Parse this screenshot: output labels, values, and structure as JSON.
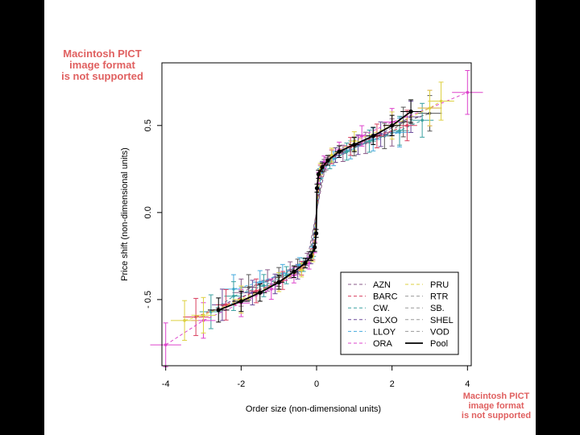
{
  "notices": {
    "top": [
      "Macintosh PICT",
      "image format",
      "is not supported"
    ],
    "bottom": [
      "Macintosh PICT",
      "image format",
      "is not supported"
    ]
  },
  "chart_data": {
    "type": "scatter",
    "title": "",
    "xlabel": "Order size (non-dimensional units)",
    "ylabel": "Price shift (non-dimensional units)",
    "xlim": [
      -4.1,
      4.1
    ],
    "ylim": [
      -0.88,
      0.86
    ],
    "x_ticks": [
      -4,
      -2,
      0,
      2,
      4
    ],
    "x_tick_labels": [
      "-4",
      "-2",
      "0",
      "2",
      "4"
    ],
    "y_ticks": [
      -0.5,
      0.0,
      0.5
    ],
    "y_tick_labels": [
      "- 0.5",
      "0.0",
      "0.5"
    ],
    "grid": false,
    "legend_position": "bottom-right",
    "legend_left": [
      {
        "name": "AZN",
        "color": "#8a5a88"
      },
      {
        "name": "BARC",
        "color": "#d94060"
      },
      {
        "name": "CW.",
        "color": "#3aa0a0"
      },
      {
        "name": "GLXO",
        "color": "#6a4a9a"
      },
      {
        "name": "LLOY",
        "color": "#44aadd"
      },
      {
        "name": "ORA",
        "color": "#dd44cc"
      }
    ],
    "legend_right": [
      {
        "name": "PRU",
        "color": "#ddd040"
      },
      {
        "name": "RTR",
        "color": "#999999"
      },
      {
        "name": "SB.",
        "color": "#999999"
      },
      {
        "name": "SHEL",
        "color": "#999999"
      },
      {
        "name": "VOD",
        "color": "#999999"
      },
      {
        "name": "Pool",
        "color": "#000000"
      }
    ],
    "series": [
      {
        "name": "Pool",
        "color": "#000000",
        "x": [
          -2.6,
          -2.0,
          -1.5,
          -1.0,
          -0.6,
          -0.3,
          -0.15,
          -0.05,
          -0.01,
          0.01,
          0.05,
          0.15,
          0.3,
          0.6,
          1.0,
          1.5,
          2.0,
          2.5
        ],
        "y": [
          -0.56,
          -0.51,
          -0.46,
          -0.4,
          -0.34,
          -0.29,
          -0.25,
          -0.2,
          -0.12,
          0.14,
          0.22,
          0.26,
          0.3,
          0.35,
          0.39,
          0.44,
          0.5,
          0.58
        ]
      },
      {
        "name": "PRU",
        "color": "#ddd040",
        "x": [
          -3.5,
          -3.0,
          -2.0,
          -1.0,
          -0.4,
          -0.1,
          0.1,
          0.4,
          1.0,
          2.0,
          3.0,
          3.3
        ],
        "y": [
          -0.62,
          -0.59,
          -0.5,
          -0.4,
          -0.33,
          -0.25,
          0.25,
          0.33,
          0.41,
          0.5,
          0.6,
          0.64
        ]
      },
      {
        "name": "ORA",
        "color": "#dd44cc",
        "x": [
          -4.0,
          -3.0,
          -2.0,
          -1.2,
          -0.6,
          -0.2,
          -0.05,
          0.05,
          0.2,
          0.6,
          1.2,
          2.0,
          3.0,
          4.0
        ],
        "y": [
          -0.76,
          -0.62,
          -0.52,
          -0.44,
          -0.36,
          -0.29,
          -0.2,
          0.2,
          0.29,
          0.36,
          0.44,
          0.52,
          0.6,
          0.69
        ]
      },
      {
        "name": "BARC",
        "color": "#d94060",
        "x": [
          -3.2,
          -2.4,
          -1.6,
          -0.9,
          -0.4,
          -0.1,
          0.1,
          0.4,
          0.9,
          1.6,
          2.4
        ],
        "y": [
          -0.6,
          -0.53,
          -0.45,
          -0.39,
          -0.32,
          -0.24,
          0.24,
          0.32,
          0.38,
          0.44,
          0.5
        ]
      },
      {
        "name": "CW.",
        "color": "#3aa0a0",
        "x": [
          -2.8,
          -2.2,
          -1.4,
          -0.8,
          -0.35,
          -0.08,
          0.08,
          0.35,
          0.8,
          1.4,
          2.2,
          2.8
        ],
        "y": [
          -0.57,
          -0.48,
          -0.42,
          -0.36,
          -0.3,
          -0.22,
          0.22,
          0.29,
          0.35,
          0.41,
          0.47,
          0.53
        ]
      },
      {
        "name": "LLOY",
        "color": "#44aadd",
        "x": [
          -2.2,
          -1.5,
          -0.9,
          -0.45,
          -0.12,
          0.12,
          0.45,
          0.9,
          1.5,
          2.2
        ],
        "y": [
          -0.44,
          -0.4,
          -0.35,
          -0.3,
          -0.23,
          0.23,
          0.31,
          0.36,
          0.42,
          0.46
        ]
      },
      {
        "name": "GLXO",
        "color": "#6a4a9a",
        "x": [
          -2.5,
          -1.7,
          -1.1,
          -0.5,
          -0.15,
          0.15,
          0.5,
          1.1,
          1.7,
          2.5
        ],
        "y": [
          -0.53,
          -0.46,
          -0.41,
          -0.34,
          -0.26,
          0.26,
          0.33,
          0.39,
          0.45,
          0.55
        ]
      },
      {
        "name": "AZN",
        "color": "#8a5a88",
        "x": [
          -2.0,
          -1.3,
          -0.7,
          -0.25,
          0.25,
          0.7,
          1.3,
          2.0
        ],
        "y": [
          -0.46,
          -0.39,
          -0.33,
          -0.27,
          0.28,
          0.34,
          0.4,
          0.46
        ]
      },
      {
        "name": "SHEL",
        "color": "#555555",
        "x": [
          -1.8,
          -1.0,
          -0.5,
          -0.2,
          0.2,
          0.5,
          1.0,
          1.8,
          2.3,
          3.0
        ],
        "y": [
          -0.43,
          -0.37,
          -0.31,
          -0.26,
          0.27,
          0.33,
          0.38,
          0.44,
          0.52,
          0.57
        ]
      }
    ]
  }
}
